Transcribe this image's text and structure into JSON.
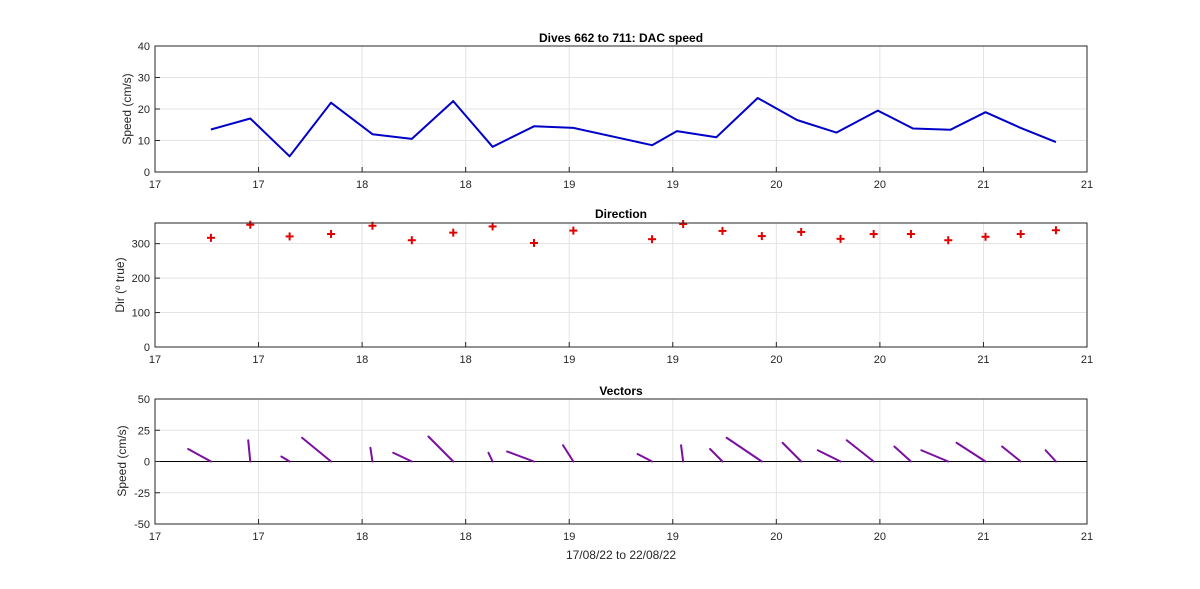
{
  "colors": {
    "speed_line": "#0000c8",
    "direction_marker": "#e00000",
    "vector_line": "#7a0fa0",
    "grid": "#e3e3e3",
    "axes": "#262626"
  },
  "xlabel": "17/08/22 to 22/08/22",
  "chart_data": [
    {
      "type": "line",
      "title": "Dives 662 to 711: DAC speed",
      "ylabel": "Speed (cm/s)",
      "xlim": [
        17,
        21.5
      ],
      "ylim": [
        0,
        40
      ],
      "yticks": [
        0,
        10,
        20,
        30,
        40
      ],
      "xtick_values": [
        17,
        17.5,
        18,
        18.5,
        19,
        19.5,
        20,
        20.5,
        21,
        21.5
      ],
      "xtick_labels": [
        "17",
        "17",
        "18",
        "18",
        "19",
        "19",
        "20",
        "20",
        "21",
        "21"
      ],
      "grid": true,
      "series": [
        {
          "x": [
            17.27,
            17.46,
            17.65,
            17.85,
            18.05,
            18.24,
            18.44,
            18.63,
            18.83,
            19.02,
            19.4,
            19.52,
            19.71,
            19.91,
            20.1,
            20.29,
            20.49,
            20.66,
            20.84,
            21.01,
            21.18,
            21.35
          ],
          "values": [
            13.5,
            17,
            5,
            22,
            12,
            10.5,
            22.5,
            8,
            14.5,
            14,
            8.5,
            13,
            11,
            23.5,
            16.5,
            12.5,
            19.5,
            13.8,
            13.4,
            19,
            14,
            9.5
          ]
        }
      ]
    },
    {
      "type": "scatter",
      "title": "Direction",
      "ylabel": "Dir (o true)",
      "ylim": [
        0,
        360
      ],
      "yticks": [
        0,
        100,
        200,
        300
      ],
      "xlim": [
        17,
        21.5
      ],
      "grid": true,
      "series": [
        {
          "x": [
            17.27,
            17.46,
            17.65,
            17.85,
            18.05,
            18.24,
            18.44,
            18.63,
            18.83,
            19.02,
            19.4,
            19.55,
            19.74,
            19.93,
            20.12,
            20.31,
            20.47,
            20.65,
            20.83,
            21.01,
            21.18,
            21.35
          ],
          "values": [
            317,
            355,
            321,
            328,
            352,
            310,
            332,
            350,
            302,
            338,
            313,
            357,
            337,
            322,
            334,
            314,
            328,
            328,
            310,
            320,
            328,
            339
          ]
        }
      ]
    },
    {
      "type": "line",
      "title": "Vectors",
      "ylabel": "Speed (cm/s)",
      "ylim": [
        -50,
        50
      ],
      "yticks": [
        -50,
        -25,
        0,
        25,
        50
      ],
      "xlim": [
        17,
        21.5
      ],
      "grid": true,
      "note_units": "each segment runs from the dive time on the zero line to the point (dx, dy) in the same units as the axes",
      "series": [
        {
          "x": [
            17.27,
            17.46,
            17.65,
            17.85,
            18.05,
            18.24,
            18.44,
            18.63,
            18.83,
            19.02,
            19.4,
            19.55,
            19.74,
            19.93,
            20.12,
            20.31,
            20.47,
            20.65,
            20.83,
            21.01,
            21.18,
            21.35
          ],
          "dx": [
            -0.11,
            -0.01,
            -0.04,
            -0.14,
            -0.01,
            -0.09,
            -0.12,
            -0.02,
            -0.13,
            -0.05,
            -0.07,
            -0.01,
            -0.06,
            -0.17,
            -0.09,
            -0.11,
            -0.13,
            -0.08,
            -0.13,
            -0.14,
            -0.09,
            -0.05
          ],
          "dy": [
            10,
            17,
            4,
            19,
            11,
            7,
            20,
            7,
            8,
            13,
            6,
            13,
            10,
            19,
            15,
            9,
            17,
            12,
            9,
            15,
            12,
            9
          ]
        }
      ]
    }
  ]
}
